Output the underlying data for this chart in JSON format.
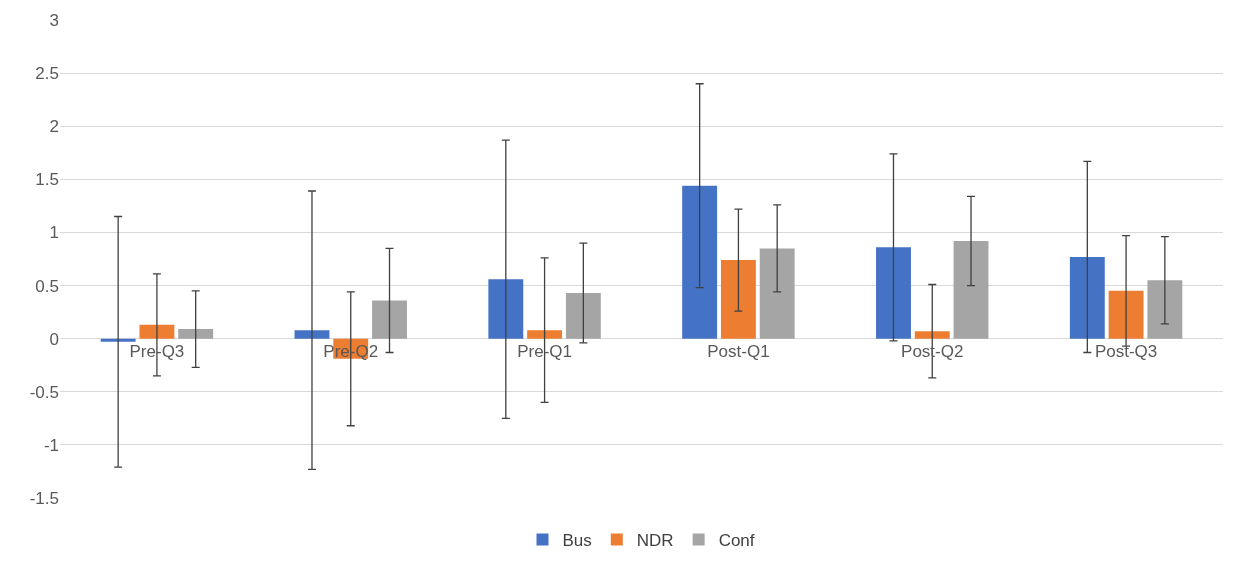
{
  "chart_data": {
    "type": "bar",
    "categories": [
      "Pre-Q3",
      "Pre-Q2",
      "Pre-Q1",
      "Post-Q1",
      "Post-Q2",
      "Post-Q3"
    ],
    "series": [
      {
        "name": "Bus",
        "color": "#4472c4",
        "values": [
          -0.03,
          0.08,
          0.56,
          1.44,
          0.86,
          0.77
        ],
        "errors": [
          1.18,
          1.31,
          1.31,
          0.96,
          0.88,
          0.9
        ]
      },
      {
        "name": "NDR",
        "color": "#ed7d31",
        "values": [
          0.13,
          -0.19,
          0.08,
          0.74,
          0.07,
          0.45
        ],
        "errors": [
          0.48,
          0.63,
          0.68,
          0.48,
          0.44,
          0.52
        ]
      },
      {
        "name": "Conf",
        "color": "#a5a5a5",
        "values": [
          0.09,
          0.36,
          0.43,
          0.85,
          0.92,
          0.55
        ],
        "errors": [
          0.36,
          0.49,
          0.47,
          0.41,
          0.42,
          0.41
        ]
      }
    ],
    "ylim": [
      -1.5,
      3
    ],
    "yticks": [
      -1.5,
      -1,
      -0.5,
      0,
      0.5,
      1,
      1.5,
      2,
      2.5,
      3
    ],
    "grid": "y",
    "legend": "bottom"
  }
}
